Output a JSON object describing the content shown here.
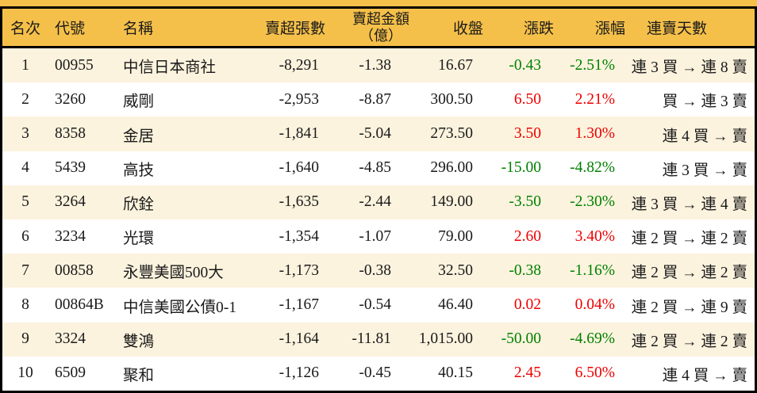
{
  "colors": {
    "header_gold": "#F5C04A",
    "row_cream": "#FCF3DE",
    "row_white": "#FFFFFF",
    "border_black": "#000000",
    "text_black": "#1A1A1A",
    "gain_red": "#EE0000",
    "loss_green": "#008000"
  },
  "table": {
    "columns": [
      {
        "label": "名次"
      },
      {
        "label": "代號"
      },
      {
        "label": "名稱"
      },
      {
        "label": "賣超張數"
      },
      {
        "label": "賣超金額",
        "label_line2": "（億）"
      },
      {
        "label": "收盤"
      },
      {
        "label": "漲跌"
      },
      {
        "label": "漲幅"
      },
      {
        "label": "連賣天數"
      }
    ],
    "rows": [
      {
        "rank": "1",
        "code": "00955",
        "name": "中信日本商社",
        "sell_volume": "-8,291",
        "sell_amount": "-1.38",
        "close": "16.67",
        "change": "-0.43",
        "change_pct": "-2.51%",
        "streak": "連 3 買 → 連 8 賣"
      },
      {
        "rank": "2",
        "code": "3260",
        "name": "威剛",
        "sell_volume": "-2,953",
        "sell_amount": "-8.87",
        "close": "300.50",
        "change": "6.50",
        "change_pct": "2.21%",
        "streak": "買 → 連 3 賣"
      },
      {
        "rank": "3",
        "code": "8358",
        "name": "金居",
        "sell_volume": "-1,841",
        "sell_amount": "-5.04",
        "close": "273.50",
        "change": "3.50",
        "change_pct": "1.30%",
        "streak": "連 4 買 → 賣"
      },
      {
        "rank": "4",
        "code": "5439",
        "name": "高技",
        "sell_volume": "-1,640",
        "sell_amount": "-4.85",
        "close": "296.00",
        "change": "-15.00",
        "change_pct": "-4.82%",
        "streak": "連 3 買 → 賣"
      },
      {
        "rank": "5",
        "code": "3264",
        "name": "欣銓",
        "sell_volume": "-1,635",
        "sell_amount": "-2.44",
        "close": "149.00",
        "change": "-3.50",
        "change_pct": "-2.30%",
        "streak": "連 3 買 → 連 4 賣"
      },
      {
        "rank": "6",
        "code": "3234",
        "name": "光環",
        "sell_volume": "-1,354",
        "sell_amount": "-1.07",
        "close": "79.00",
        "change": "2.60",
        "change_pct": "3.40%",
        "streak": "連 2 買 → 連 2 賣"
      },
      {
        "rank": "7",
        "code": "00858",
        "name": "永豐美國500大",
        "sell_volume": "-1,173",
        "sell_amount": "-0.38",
        "close": "32.50",
        "change": "-0.38",
        "change_pct": "-1.16%",
        "streak": "連 2 買 → 連 2 賣"
      },
      {
        "rank": "8",
        "code": "00864B",
        "name": "中信美國公債0-1",
        "sell_volume": "-1,167",
        "sell_amount": "-0.54",
        "close": "46.40",
        "change": "0.02",
        "change_pct": "0.04%",
        "streak": "連 2 買 → 連 9 賣"
      },
      {
        "rank": "9",
        "code": "3324",
        "name": "雙鴻",
        "sell_volume": "-1,164",
        "sell_amount": "-11.81",
        "close": "1,015.00",
        "change": "-50.00",
        "change_pct": "-4.69%",
        "streak": "連 2 買 → 連 2 賣"
      },
      {
        "rank": "10",
        "code": "6509",
        "name": "聚和",
        "sell_volume": "-1,126",
        "sell_amount": "-0.45",
        "close": "40.15",
        "change": "2.45",
        "change_pct": "6.50%",
        "streak": "連 4 買 → 賣"
      }
    ]
  }
}
